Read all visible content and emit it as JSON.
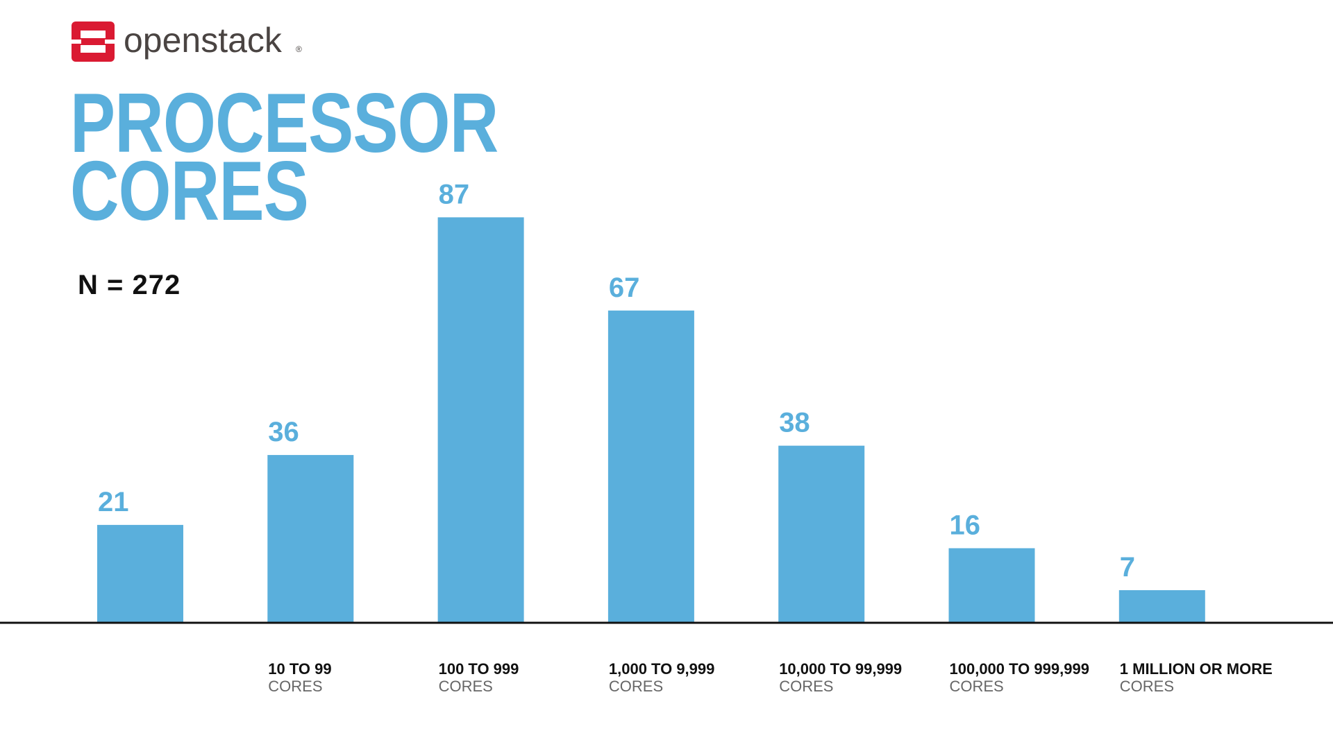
{
  "brand": {
    "name": "openstack",
    "mark": "®"
  },
  "chart_data": {
    "type": "bar",
    "title": "PROCESSOR CORES",
    "annotation": "N = 272",
    "categories": [
      null,
      "10 TO 99",
      "100 TO 999",
      "1,000 TO 9,999",
      "10,000 TO 99,999",
      "100,000 TO 999,999",
      "1 MILLION OR MORE"
    ],
    "category_sublabels": [
      null,
      "CORES",
      "CORES",
      "CORES",
      "CORES",
      "CORES",
      "CORES"
    ],
    "values": [
      21,
      36,
      87,
      67,
      38,
      16,
      7
    ],
    "color": "#5aafdc",
    "ylim": [
      0,
      100
    ],
    "grid": false
  }
}
